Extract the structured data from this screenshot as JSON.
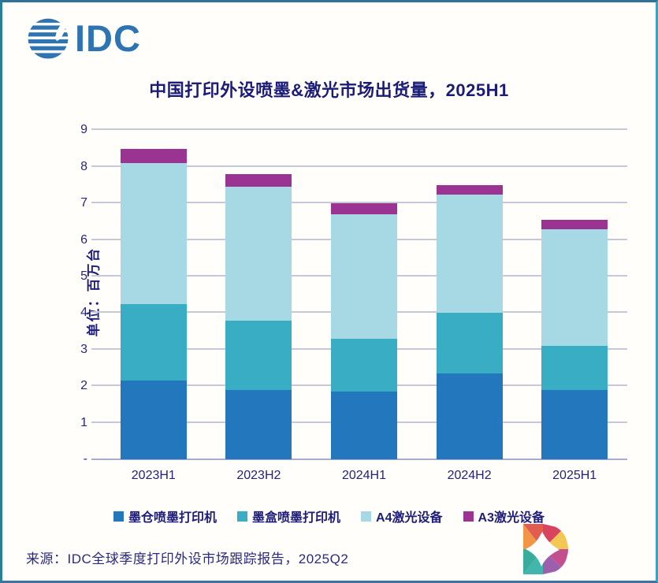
{
  "brand": {
    "logo_text": "IDC"
  },
  "chart_data": {
    "type": "bar",
    "stacked": true,
    "title": "中国打印外设喷墨&激光市场出货量，2025H1",
    "xlabel": "",
    "ylabel": "单位：百万台",
    "categories": [
      "2023H1",
      "2023H2",
      "2024H1",
      "2024H2",
      "2025H1"
    ],
    "series": [
      {
        "name": "墨仓喷墨打印机",
        "color": "#2377bd",
        "values": [
          2.15,
          1.9,
          1.85,
          2.35,
          1.9
        ]
      },
      {
        "name": "墨盒喷墨打印机",
        "color": "#38adc4",
        "values": [
          2.1,
          1.9,
          1.45,
          1.65,
          1.2
        ]
      },
      {
        "name": "A4激光设备",
        "color": "#a6d9e4",
        "values": [
          3.85,
          3.65,
          3.4,
          3.25,
          3.2
        ]
      },
      {
        "name": "A3激光设备",
        "color": "#9a3391",
        "values": [
          0.4,
          0.35,
          0.3,
          0.25,
          0.25
        ]
      }
    ],
    "totals": [
      8.5,
      7.8,
      7.0,
      7.5,
      6.55
    ],
    "y_ticks": [
      "9",
      "8",
      "7",
      "6",
      "5",
      "4",
      "3",
      "2",
      "1",
      "-"
    ],
    "ylim": [
      0,
      9
    ],
    "grid": true,
    "legend_position": "bottom"
  },
  "source": {
    "text": "来源：IDC全球季度打印外设市场跟踪报告，2025Q2"
  },
  "colors": {
    "title_text": "#1b1b78",
    "axis_text": "#27277d",
    "gridline": "#c6c8da",
    "brand_blue": "#2e74b2",
    "frame_teal": "#2e7396"
  }
}
